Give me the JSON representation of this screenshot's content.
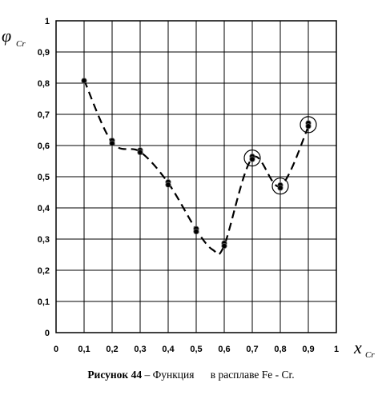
{
  "chart_data": {
    "type": "line",
    "title": "",
    "xlabel": {
      "symbol": "x",
      "subscript": "Cr"
    },
    "ylabel": {
      "symbol": "φ",
      "subscript": "Cr"
    },
    "xlim": [
      0,
      1
    ],
    "ylim": [
      0,
      1
    ],
    "x_ticks": [
      "0",
      "0,1",
      "0,2",
      "0,3",
      "0,4",
      "0,5",
      "0,6",
      "0,7",
      "0,8",
      "0,9",
      "1"
    ],
    "y_ticks": [
      "0",
      "0,1",
      "0,2",
      "0,3",
      "0,4",
      "0,5",
      "0,6",
      "0,7",
      "0,8",
      "0,9",
      "1"
    ],
    "grid": true,
    "series": [
      {
        "style": "dashed-line",
        "points": [
          [
            0.1,
            0.81
          ],
          [
            0.2,
            0.61
          ],
          [
            0.3,
            0.58
          ],
          [
            0.4,
            0.48
          ],
          [
            0.5,
            0.33
          ],
          [
            0.56,
            0.265
          ],
          [
            0.6,
            0.28
          ],
          [
            0.7,
            0.56
          ],
          [
            0.8,
            0.47
          ],
          [
            0.9,
            0.66
          ]
        ]
      },
      {
        "style": "markers",
        "points": [
          [
            0.1,
            0.808
          ],
          [
            0.2,
            0.616
          ],
          [
            0.2,
            0.607
          ],
          [
            0.3,
            0.585
          ],
          [
            0.3,
            0.578
          ],
          [
            0.4,
            0.483
          ],
          [
            0.4,
            0.474
          ],
          [
            0.5,
            0.333
          ],
          [
            0.5,
            0.324
          ],
          [
            0.6,
            0.287
          ],
          [
            0.6,
            0.278
          ],
          [
            0.7,
            0.565
          ],
          [
            0.7,
            0.556
          ],
          [
            0.8,
            0.473
          ],
          [
            0.8,
            0.464
          ],
          [
            0.9,
            0.672
          ],
          [
            0.9,
            0.662
          ]
        ]
      }
    ],
    "circled_points": [
      [
        0.7,
        0.56
      ],
      [
        0.8,
        0.47
      ],
      [
        0.9,
        0.667
      ]
    ]
  },
  "caption": {
    "label": "Рисунок 44",
    "text": " – Функция      в расплаве Fe - Cr."
  }
}
